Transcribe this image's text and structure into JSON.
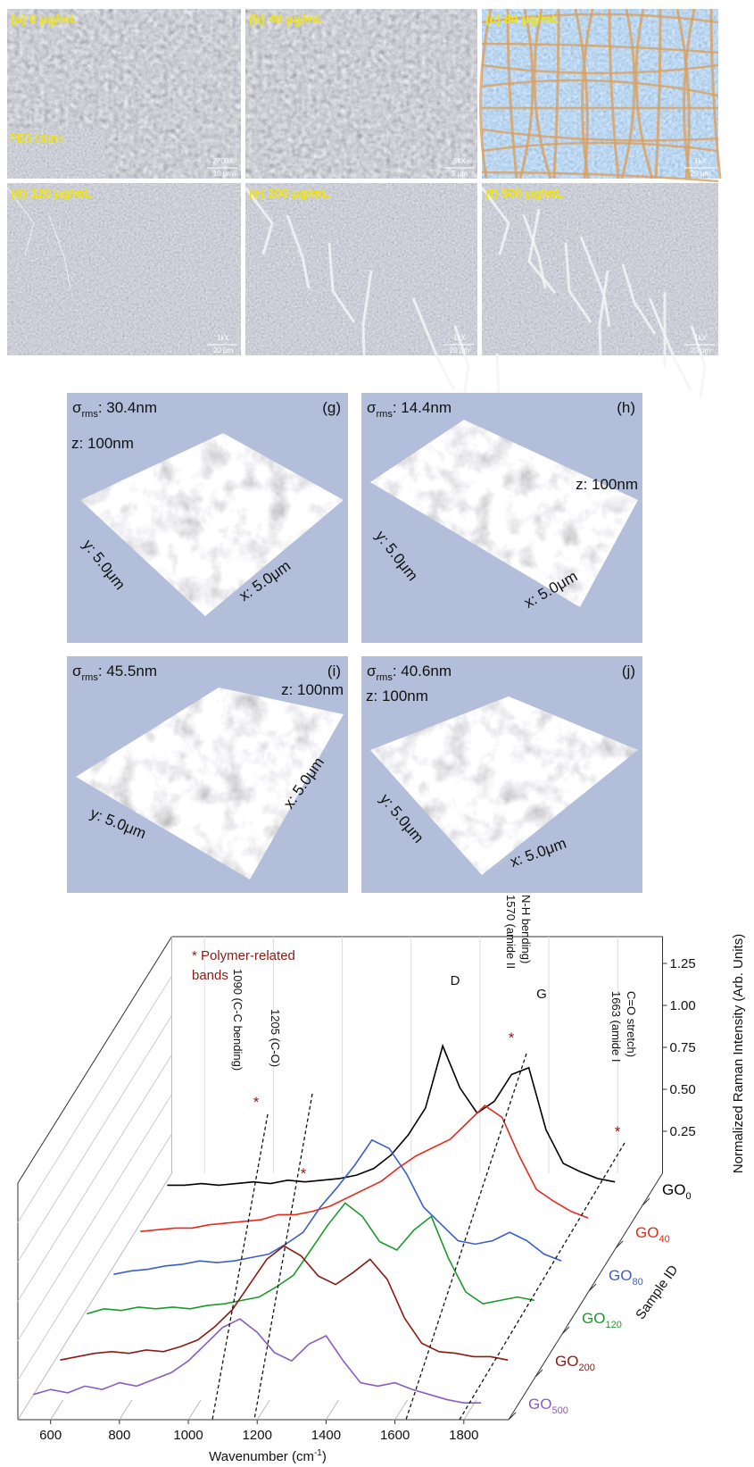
{
  "sem_panels": [
    {
      "label": "(a) 0 μg/mL",
      "magnification": "2700X",
      "scale": "10 μm",
      "inset": "PES blank"
    },
    {
      "label": "(b) 40 μg/mL",
      "magnification": "5kX",
      "scale": "5 μm"
    },
    {
      "label": "(c) 80 μg/mL",
      "magnification": "1kX",
      "scale": "20 μm"
    },
    {
      "label": "(d) 120 μg/mL",
      "magnification": "1kX",
      "scale": "20 μm"
    },
    {
      "label": "(e) 200 μg/mL",
      "magnification": "1kX",
      "scale": "20 μm"
    },
    {
      "label": "(f) 500 μg/mL",
      "magnification": "1kX",
      "scale": "20 μm"
    }
  ],
  "afm_panels": [
    {
      "panel": "(g)",
      "sigma": "σ",
      "sigma_sub": "rms",
      "roughness": ": 30.4nm",
      "z": "z: 100nm",
      "x": "x: 5.0μm",
      "y": "y: 5.0μm"
    },
    {
      "panel": "(h)",
      "sigma": "σ",
      "sigma_sub": "rms",
      "roughness": ": 14.4nm",
      "z": "z: 100nm",
      "x": "x: 5.0μm",
      "y": "y: 5.0μm"
    },
    {
      "panel": "(i)",
      "sigma": "σ",
      "sigma_sub": "rms",
      "roughness": ": 45.5nm",
      "z": "z: 100nm",
      "x": "x: 5.0μm",
      "y": "y: 5.0μm"
    },
    {
      "panel": "(j)",
      "sigma": "σ",
      "sigma_sub": "rms",
      "roughness": ": 40.6nm",
      "z": "z: 100nm",
      "x": "x: 5.0μm",
      "y": "y: 5.0μm"
    }
  ],
  "chart_data": {
    "type": "line",
    "x_label": "Wavenumber (cm",
    "x_label_sup": "-1",
    "x_label_end": ")",
    "y_label": "Normalized Raman Intensity (Arb. Units)",
    "z_label": "Sample ID",
    "xlim": [
      505,
      1930
    ],
    "xticks": [
      600,
      800,
      1000,
      1200,
      1400,
      1600,
      1800
    ],
    "ylim": [
      0,
      1.25
    ],
    "yticks": [
      0.25,
      {
        "value": 0.5,
        "label": "0.50"
      },
      0.75,
      {
        "value": 1.0,
        "label": "1.00"
      },
      1.25
    ],
    "x": [
      550,
      600,
      650,
      700,
      750,
      800,
      850,
      900,
      950,
      1000,
      1050,
      1100,
      1150,
      1200,
      1250,
      1300,
      1350,
      1400,
      1450,
      1500,
      1550,
      1600,
      1650,
      1700,
      1750,
      1800,
      1850
    ],
    "series": [
      {
        "name": "GO",
        "name_sub": "0",
        "color": "#000000",
        "values": [
          0.12,
          0.12,
          0.13,
          0.12,
          0.13,
          0.14,
          0.13,
          0.15,
          0.14,
          0.15,
          0.16,
          0.18,
          0.22,
          0.3,
          0.42,
          0.58,
          0.95,
          0.7,
          0.55,
          0.62,
          0.78,
          0.82,
          0.45,
          0.25,
          0.2,
          0.16,
          0.14
        ]
      },
      {
        "name": "GO",
        "name_sub": "40",
        "color": "#e8291c",
        "values": [
          0.1,
          0.11,
          0.12,
          0.12,
          0.14,
          0.15,
          0.16,
          0.17,
          0.2,
          0.2,
          0.22,
          0.25,
          0.3,
          0.35,
          0.4,
          0.48,
          0.55,
          0.6,
          0.65,
          0.75,
          0.85,
          0.78,
          0.55,
          0.35,
          0.28,
          0.22,
          0.18
        ]
      },
      {
        "name": "GO",
        "name_sub": "80",
        "color": "#3a5fc8",
        "values": [
          0.1,
          0.12,
          0.13,
          0.15,
          0.16,
          0.18,
          0.17,
          0.18,
          0.2,
          0.22,
          0.28,
          0.35,
          0.5,
          0.62,
          0.75,
          0.9,
          0.85,
          0.7,
          0.5,
          0.4,
          0.3,
          0.28,
          0.3,
          0.35,
          0.3,
          0.22,
          0.18
        ]
      },
      {
        "name": "GO",
        "name_sub": "120",
        "color": "#1a9a2c",
        "values": [
          0.12,
          0.15,
          0.14,
          0.16,
          0.15,
          0.16,
          0.15,
          0.17,
          0.18,
          0.2,
          0.22,
          0.28,
          0.35,
          0.5,
          0.65,
          0.78,
          0.7,
          0.55,
          0.5,
          0.62,
          0.7,
          0.45,
          0.25,
          0.18,
          0.2,
          0.22,
          0.2
        ]
      },
      {
        "name": "GO",
        "name_sub": "200",
        "color": "#8b1a14",
        "values": [
          0.1,
          0.12,
          0.14,
          0.15,
          0.14,
          0.16,
          0.15,
          0.18,
          0.22,
          0.3,
          0.4,
          0.55,
          0.7,
          0.78,
          0.72,
          0.6,
          0.55,
          0.62,
          0.7,
          0.58,
          0.35,
          0.2,
          0.15,
          0.14,
          0.12,
          0.12,
          0.1
        ]
      },
      {
        "name": "GO",
        "name_sub": "500",
        "color": "#8a5cc0",
        "values": [
          0.15,
          0.18,
          0.16,
          0.2,
          0.18,
          0.22,
          0.2,
          0.24,
          0.28,
          0.35,
          0.45,
          0.55,
          0.6,
          0.52,
          0.4,
          0.35,
          0.45,
          0.5,
          0.35,
          0.22,
          0.2,
          0.22,
          0.18,
          0.15,
          0.12,
          0.1,
          0.1
        ]
      }
    ],
    "annotations": [
      "* Polymer-related",
      "bands",
      "1090 (C-C bending)",
      "1205  (C-O)",
      "1570 (amide II",
      "N-H bending)",
      "1663 (amide I",
      "C=O stretch)",
      "D",
      "G",
      "*",
      "*",
      "*",
      "*"
    ]
  }
}
